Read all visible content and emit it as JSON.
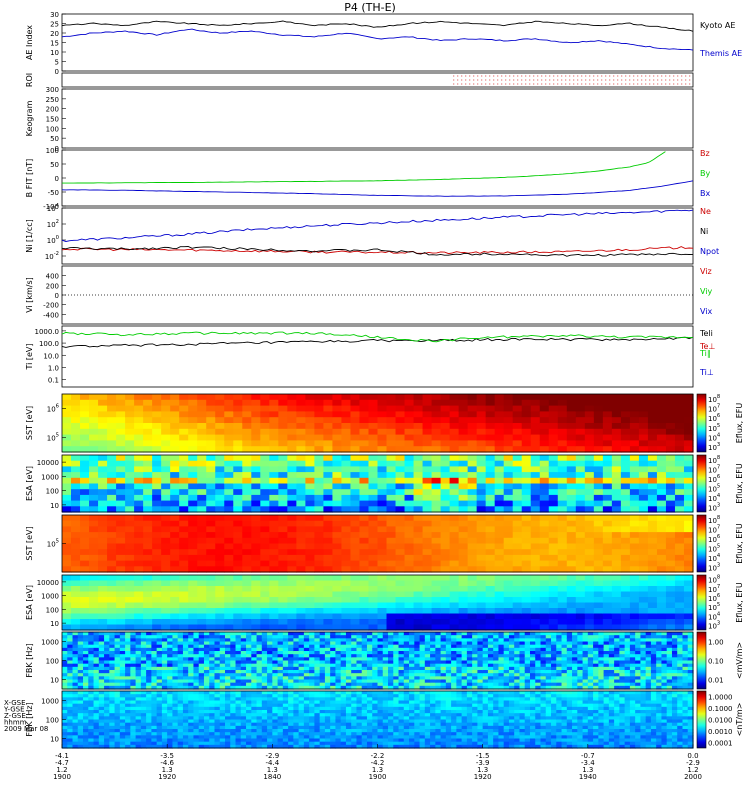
{
  "title": "P4 (TH-E)",
  "colors": {
    "kyoto_ae": "#000000",
    "themis_ae": "#0000cc",
    "bz": "#cc0000",
    "by": "#00cc00",
    "bx": "#0000cc",
    "ne": "#cc0000",
    "ni": "#000000",
    "npot": "#0000cc",
    "teli": "#000000",
    "te_perp": "#cc0000",
    "ti_par": "#00cc00",
    "ti_perp": "#0000cc"
  },
  "footer": {
    "row_labels": [
      "X-GSE",
      "Y-GSE",
      "Z-GSE",
      "hhmm",
      "2009 Mar 08"
    ],
    "columns": [
      {
        "values": [
          "-4.1",
          "-4.7",
          "1.2",
          "1900"
        ]
      },
      {
        "values": [
          "-3.5",
          "-4.6",
          "1.3",
          "1920"
        ]
      },
      {
        "values": [
          "-2.9",
          "-4.4",
          "1.3",
          "1840"
        ]
      },
      {
        "values": [
          "-2.2",
          "-4.2",
          "1.3",
          "1900"
        ]
      },
      {
        "values": [
          "-1.5",
          "-3.9",
          "1.3",
          "1920"
        ]
      },
      {
        "values": [
          "-0.7",
          "-3.4",
          "1.3",
          "1940"
        ]
      },
      {
        "values": [
          "0.0",
          "-2.9",
          "1.2",
          "2000"
        ]
      }
    ]
  },
  "chart_data": [
    {
      "type": "line",
      "ylabel": "AE Index",
      "ylim": [
        0,
        30
      ],
      "yticks": [
        "0",
        "5",
        "10",
        "15",
        "20",
        "25",
        "30"
      ],
      "series": [
        {
          "name": "Kyoto AE",
          "x": [
            0,
            0.05,
            0.1,
            0.15,
            0.2,
            0.25,
            0.3,
            0.35,
            0.4,
            0.45,
            0.5,
            0.55,
            0.6,
            0.65,
            0.7,
            0.75,
            0.8,
            0.85,
            0.9,
            0.95,
            1.0
          ],
          "values": [
            24,
            25,
            24,
            26,
            25,
            24,
            25,
            26,
            24,
            25,
            23,
            25,
            26,
            25,
            24,
            26,
            25,
            24,
            25,
            23,
            21
          ]
        },
        {
          "name": "Themis AE",
          "x": [
            0,
            0.05,
            0.1,
            0.15,
            0.2,
            0.25,
            0.3,
            0.35,
            0.4,
            0.45,
            0.5,
            0.55,
            0.6,
            0.65,
            0.7,
            0.75,
            0.8,
            0.85,
            0.9,
            0.95,
            1.0
          ],
          "values": [
            18,
            20,
            21,
            19,
            22,
            20,
            21,
            19,
            18,
            20,
            17,
            18,
            16,
            17,
            16,
            17,
            15,
            16,
            14,
            12,
            11
          ]
        }
      ]
    },
    {
      "type": "scatter",
      "ylabel": "ROI",
      "ylim": [
        0,
        1
      ],
      "yticks": [],
      "series": []
    },
    {
      "type": "heatmap",
      "ylabel": "Keogram",
      "ylim": [
        0,
        300
      ],
      "yticks": [
        "0",
        "50",
        "100",
        "150",
        "200",
        "250",
        "300"
      ],
      "series": []
    },
    {
      "type": "line",
      "ylabel": "B FIT [nT]",
      "ylim": [
        -100,
        100
      ],
      "yticks": [
        "-100",
        "-50",
        "0",
        "50",
        "100"
      ],
      "series": [
        {
          "name": "Bz",
          "x": [
            0,
            0.2,
            0.4,
            0.6,
            0.8,
            1.0
          ],
          "values": [
            0,
            0,
            0,
            0,
            0,
            0
          ]
        },
        {
          "name": "By",
          "x": [
            0,
            0.1,
            0.2,
            0.3,
            0.4,
            0.5,
            0.6,
            0.7,
            0.75,
            0.8,
            0.85,
            0.9,
            0.93,
            0.96
          ],
          "values": [
            -18,
            -17,
            -16,
            -14,
            -12,
            -10,
            -5,
            2,
            8,
            15,
            25,
            40,
            55,
            100
          ]
        },
        {
          "name": "Bx",
          "x": [
            0,
            0.1,
            0.2,
            0.3,
            0.4,
            0.5,
            0.6,
            0.7,
            0.8,
            0.85,
            0.9,
            0.95,
            1.0
          ],
          "values": [
            -42,
            -44,
            -48,
            -52,
            -56,
            -62,
            -65,
            -64,
            -58,
            -52,
            -44,
            -30,
            -10
          ]
        }
      ]
    },
    {
      "type": "line",
      "ylabel": "Ni [1/cc]",
      "ylim": [
        -2,
        4
      ],
      "yticks": [
        "10^-2",
        "10^0",
        "10^2",
        "10^4"
      ],
      "series": [
        {
          "name": "Ne",
          "x": [
            0,
            0.2,
            0.4,
            0.6,
            0.8,
            1.0
          ],
          "values": [
            -0.4,
            -0.5,
            -0.7,
            -0.8,
            -0.7,
            -0.2
          ]
        },
        {
          "name": "Ni",
          "x": [
            0,
            0.1,
            0.2,
            0.3,
            0.4,
            0.5,
            0.6,
            0.7,
            0.8,
            0.9,
            1.0
          ],
          "values": [
            -0.3,
            -0.4,
            -0.2,
            -0.4,
            -0.6,
            -0.5,
            -1.0,
            -0.9,
            -1.1,
            -1.0,
            -0.9
          ]
        },
        {
          "name": "Npot",
          "x": [
            0,
            0.1,
            0.2,
            0.3,
            0.4,
            0.5,
            0.6,
            0.7,
            0.8,
            0.9,
            1.0
          ],
          "values": [
            0.5,
            0.8,
            1.2,
            1.7,
            2.1,
            2.4,
            2.7,
            3.0,
            3.3,
            3.5,
            3.8
          ]
        }
      ]
    },
    {
      "type": "line",
      "ylabel": "Vi [km/s]",
      "ylim": [
        -600,
        600
      ],
      "yticks": [
        "-400",
        "-200",
        "0",
        "200",
        "400"
      ],
      "series": [
        {
          "name": "Viz",
          "x": [
            0,
            1
          ],
          "values": [
            0,
            0
          ]
        },
        {
          "name": "Viy",
          "x": [
            0,
            1
          ],
          "values": [
            0,
            0
          ]
        },
        {
          "name": "Vix",
          "x": [
            0,
            1
          ],
          "values": [
            0,
            0
          ]
        }
      ]
    },
    {
      "type": "line",
      "ylabel": "Ti [eV]",
      "ylim": [
        -1.5,
        3.5
      ],
      "yticks": [
        "0.1",
        "1.0",
        "10.0",
        "100.0",
        "1000.0"
      ],
      "series": [
        {
          "name": "Teli",
          "x": [
            0,
            0.1,
            0.2,
            0.3,
            0.4,
            0.5,
            0.6,
            0.7,
            0.8,
            0.9,
            1.0
          ],
          "values": [
            1.8,
            1.9,
            2.0,
            2.1,
            2.2,
            2.3,
            2.3,
            2.4,
            2.4,
            2.4,
            2.5
          ]
        },
        {
          "name": "Te⊥",
          "x": [
            0,
            1
          ],
          "values": [
            0,
            0
          ]
        },
        {
          "name": "Ti∥",
          "x": [
            0,
            0.1,
            0.2,
            0.3,
            0.4,
            0.5,
            0.55,
            0.6,
            0.65,
            0.7,
            0.8,
            0.9,
            1.0
          ],
          "values": [
            2.9,
            2.8,
            2.9,
            2.9,
            2.9,
            2.6,
            2.3,
            2.3,
            2.5,
            2.6,
            2.7,
            2.6,
            2.6
          ]
        },
        {
          "name": "Ti⊥",
          "x": [
            0,
            1
          ],
          "values": [
            0,
            0
          ]
        }
      ]
    },
    {
      "type": "heatmap",
      "ylabel": "SST [eV]",
      "yticks": [
        "10^5",
        "10^6"
      ],
      "colorbar": {
        "label": "Eflux, EFU",
        "ticks": [
          "10^3",
          "10^4",
          "10^5",
          "10^6",
          "10^7",
          "10^8"
        ]
      }
    },
    {
      "type": "heatmap",
      "ylabel": "ESA [eV]",
      "yticks": [
        "10",
        "100",
        "1000",
        "10000"
      ],
      "colorbar": {
        "label": "Eflux, EFU",
        "ticks": [
          "10^3",
          "10^4",
          "10^5",
          "10^6",
          "10^7",
          "10^8"
        ]
      }
    },
    {
      "type": "heatmap",
      "ylabel": "SST [eV]",
      "yticks": [
        "10^5"
      ],
      "colorbar": {
        "label": "Eflux, EFU",
        "ticks": [
          "10^3",
          "10^4",
          "10^5",
          "10^6",
          "10^7",
          "10^8"
        ]
      }
    },
    {
      "type": "heatmap",
      "ylabel": "ESA [eV]",
      "yticks": [
        "10",
        "100",
        "1000",
        "10000"
      ],
      "colorbar": {
        "label": "Eflux, EFU",
        "ticks": [
          "10^3",
          "10^4",
          "10^5",
          "10^6",
          "10^7",
          "10^8"
        ]
      }
    },
    {
      "type": "heatmap",
      "ylabel": "FBK [Hz]",
      "yticks": [
        "10",
        "100",
        "1000"
      ],
      "colorbar": {
        "label": "<mV/m>",
        "ticks": [
          "0.01",
          "0.10",
          "1.00"
        ]
      }
    },
    {
      "type": "heatmap",
      "ylabel": "FBK [Hz]",
      "yticks": [
        "10",
        "100",
        "1000"
      ],
      "colorbar": {
        "label": "<nT/m>",
        "ticks": [
          "0.0001",
          "0.0010",
          "0.0100",
          "0.1000",
          "1.0000"
        ]
      }
    }
  ]
}
